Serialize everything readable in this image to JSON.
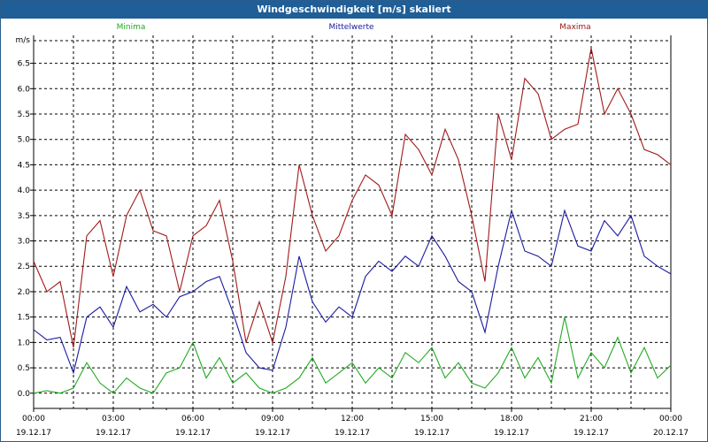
{
  "window": {
    "title": "Windgeschwindigkeit [m/s] skaliert"
  },
  "chart_data": {
    "type": "line",
    "title": "Windgeschwindigkeit [m/s] skaliert",
    "ylabel": "m/s",
    "xlabel": "",
    "ylim": [
      -0.3,
      7.05
    ],
    "yticks": [
      "0.0",
      "0.5",
      "1.0",
      "1.5",
      "2.0",
      "2.5",
      "3.0",
      "3.5",
      "4.0",
      "4.5",
      "5.0",
      "5.5",
      "6.0",
      "6.5"
    ],
    "ytick_values": [
      0,
      0.5,
      1,
      1.5,
      2,
      2.5,
      3,
      3.5,
      4,
      4.5,
      5,
      5.5,
      6,
      6.5
    ],
    "xticks": [
      {
        "time": "00:00",
        "date": "19.12.17"
      },
      {
        "time": "03:00",
        "date": "19.12.17"
      },
      {
        "time": "06:00",
        "date": "19.12.17"
      },
      {
        "time": "09:00",
        "date": "19.12.17"
      },
      {
        "time": "12:00",
        "date": "19.12.17"
      },
      {
        "time": "15:00",
        "date": "19.12.17"
      },
      {
        "time": "18:00",
        "date": "19.12.17"
      },
      {
        "time": "21:00",
        "date": "19.12.17"
      },
      {
        "time": "00:00",
        "date": "20.12.17"
      }
    ],
    "grid": true,
    "series": [
      {
        "name": "Minima",
        "color": "#22aa22",
        "x": [
          0,
          0.5,
          1,
          1.5,
          2,
          2.5,
          3,
          3.5,
          4,
          4.5,
          5,
          5.5,
          6,
          6.5,
          7,
          7.5,
          8,
          8.5,
          9,
          9.5,
          10,
          10.5,
          11,
          11.5,
          12,
          12.5,
          13,
          13.5,
          14,
          14.5,
          15,
          15.5,
          16,
          16.5,
          17,
          17.5,
          18,
          18.5,
          19,
          19.5,
          20,
          20.5,
          21,
          21.5,
          22,
          22.5,
          23,
          23.5,
          24
        ],
        "values": [
          0.0,
          0.05,
          0.0,
          0.1,
          0.6,
          0.2,
          0.0,
          0.3,
          0.1,
          0.0,
          0.4,
          0.5,
          1.0,
          0.3,
          0.7,
          0.2,
          0.4,
          0.1,
          0.0,
          0.1,
          0.3,
          0.7,
          0.2,
          0.4,
          0.6,
          0.2,
          0.5,
          0.3,
          0.8,
          0.6,
          0.9,
          0.3,
          0.6,
          0.2,
          0.1,
          0.4,
          0.9,
          0.3,
          0.7,
          0.2,
          1.5,
          0.3,
          0.8,
          0.5,
          1.1,
          0.4,
          0.9,
          0.3,
          0.55
        ]
      },
      {
        "name": "Mittelwerte",
        "color": "#1a1aa0",
        "x": [
          0,
          0.5,
          1,
          1.5,
          2,
          2.5,
          3,
          3.5,
          4,
          4.5,
          5,
          5.5,
          6,
          6.5,
          7,
          7.5,
          8,
          8.5,
          9,
          9.5,
          10,
          10.5,
          11,
          11.5,
          12,
          12.5,
          13,
          13.5,
          14,
          14.5,
          15,
          15.5,
          16,
          16.5,
          17,
          17.5,
          18,
          18.5,
          19,
          19.5,
          20,
          20.5,
          21,
          21.5,
          22,
          22.5,
          23,
          23.5,
          24
        ],
        "values": [
          1.25,
          1.05,
          1.1,
          0.4,
          1.5,
          1.7,
          1.3,
          2.1,
          1.6,
          1.75,
          1.5,
          1.9,
          2.0,
          2.2,
          2.3,
          1.6,
          0.8,
          0.5,
          0.45,
          1.3,
          2.7,
          1.8,
          1.4,
          1.7,
          1.5,
          2.3,
          2.6,
          2.4,
          2.7,
          2.5,
          3.1,
          2.7,
          2.2,
          2.0,
          1.2,
          2.5,
          3.6,
          2.8,
          2.7,
          2.5,
          3.6,
          2.9,
          2.8,
          3.4,
          3.1,
          3.5,
          2.7,
          2.5,
          2.35
        ]
      },
      {
        "name": "Maxima",
        "color": "#a01a1a",
        "x": [
          0,
          0.5,
          1,
          1.5,
          2,
          2.5,
          3,
          3.5,
          4,
          4.5,
          5,
          5.5,
          6,
          6.5,
          7,
          7.5,
          8,
          8.5,
          9,
          9.5,
          10,
          10.5,
          11,
          11.5,
          12,
          12.5,
          13,
          13.5,
          14,
          14.5,
          15,
          15.5,
          16,
          16.5,
          17,
          17.5,
          18,
          18.5,
          19,
          19.5,
          20,
          20.5,
          21,
          21.5,
          22,
          22.5,
          23,
          23.5,
          24
        ],
        "values": [
          2.6,
          2.0,
          2.2,
          0.9,
          3.1,
          3.4,
          2.3,
          3.5,
          4.0,
          3.2,
          3.1,
          2.0,
          3.1,
          3.3,
          3.8,
          2.6,
          1.0,
          1.8,
          1.0,
          2.3,
          4.5,
          3.5,
          2.8,
          3.1,
          3.8,
          4.3,
          4.1,
          3.5,
          5.1,
          4.8,
          4.3,
          5.2,
          4.6,
          3.5,
          2.2,
          5.5,
          4.6,
          6.2,
          5.9,
          5.0,
          5.2,
          5.3,
          6.8,
          5.5,
          6.0,
          5.5,
          4.8,
          4.7,
          4.5
        ]
      }
    ]
  }
}
